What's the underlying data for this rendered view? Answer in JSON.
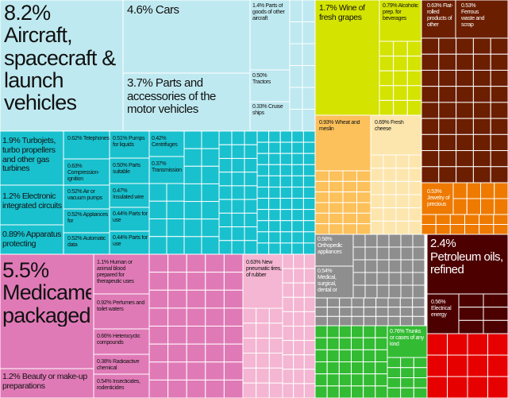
{
  "chart_data": {
    "type": "treemap",
    "value_unit": "% of total exports",
    "colors": {
      "transport_machinery": "#19c1ce",
      "transport_light": "#bfe9f0",
      "chemicals": "#e07ab7",
      "chemicals_light": "#f4b6d2",
      "fruits_vegetables": "#d4e300",
      "foodstuffs": "#fcc15b",
      "foodstuffs_light": "#fde6ad",
      "wood_misc": "#6b1e00",
      "stone_glass": "#ee7a00",
      "metals": "#8e8e8e",
      "textiles": "#33bb33",
      "mineral_products": "#4c0000",
      "plastics": "#e60000"
    },
    "items": [
      {
        "value": "8.2%",
        "label": "Aircraft, spacecraft & launch vehicles"
      },
      {
        "value": "4.6%",
        "label": "Cars"
      },
      {
        "value": "3.7%",
        "label": "Parts and accessories of the motor vehicles"
      },
      {
        "value": "1.4%",
        "label": "Parts of goods of other aircraft"
      },
      {
        "value": "0.50%",
        "label": "Tractors"
      },
      {
        "value": "0.33%",
        "label": "Cruise ships"
      },
      {
        "value": "1.9%",
        "label": "Turbojets, turbo propellers and other gas turbines"
      },
      {
        "value": "1.2%",
        "label": "Electronic integrated circuits"
      },
      {
        "value": "0.89%",
        "label": "Apparatus protecting"
      },
      {
        "value": "0.62%",
        "label": "Telephones"
      },
      {
        "value": "0.63%",
        "label": "Compression-ignition"
      },
      {
        "value": "0.52%",
        "label": "Air or vacuum pumps"
      },
      {
        "value": "0.52%",
        "label": "Appliances for"
      },
      {
        "value": "0.52%",
        "label": "Automatic data"
      },
      {
        "value": "0.51%",
        "label": "Pumps for liquids"
      },
      {
        "value": "0.50%",
        "label": "Parts suitable"
      },
      {
        "value": "0.47%",
        "label": "Insulated wire"
      },
      {
        "value": "0.44%",
        "label": "Parts for use"
      },
      {
        "value": "0.44%",
        "label": "Parts for use"
      },
      {
        "value": "0.42%",
        "label": "Centrifuges"
      },
      {
        "value": "0.37%",
        "label": "Transmission"
      },
      {
        "value": "5.5%",
        "label": "Medicaments, packaged"
      },
      {
        "value": "1.2%",
        "label": "Beauty or make-up preparations"
      },
      {
        "value": "1.1%",
        "label": "Human or animal blood prepared for therapeutic uses"
      },
      {
        "value": "0.92%",
        "label": "Perfumes and toilet waters"
      },
      {
        "value": "0.66%",
        "label": "Heterocyclic compounds"
      },
      {
        "value": "0.38%",
        "label": "Radioactive chemical"
      },
      {
        "value": "0.54%",
        "label": "Insecticides, rodenticides"
      },
      {
        "value": "0.63%",
        "label": "New pneumatic tires, of rubber"
      },
      {
        "value": "1.7%",
        "label": "Wine of fresh grapes"
      },
      {
        "value": "0.79%",
        "label": "Alcoholic prep. for beverages"
      },
      {
        "value": "0.93%",
        "label": "Wheat and meslin"
      },
      {
        "value": "0.69%",
        "label": "Fresh cheese"
      },
      {
        "value": "0.63%",
        "label": "Flat-rolled products of other"
      },
      {
        "value": "0.53%",
        "label": "Ferrous waste and scrap"
      },
      {
        "value": "0.53%",
        "label": "Jewelry of precious"
      },
      {
        "value": "0.58%",
        "label": "Orthopedic appliances"
      },
      {
        "value": "0.54%",
        "label": "Medical, surgical, dental or"
      },
      {
        "value": "0.76%",
        "label": "Trunks or cases of any kind"
      },
      {
        "value": "2.4%",
        "label": "Petroleum oils, refined"
      },
      {
        "value": "0.56%",
        "label": "Electrical energy"
      }
    ]
  }
}
